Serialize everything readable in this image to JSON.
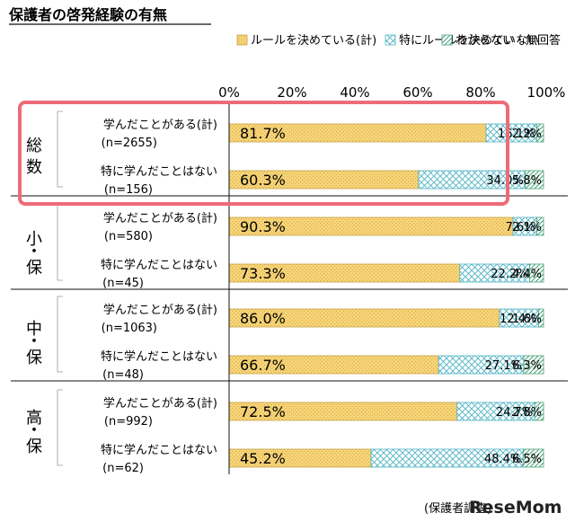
{
  "title": "保護者の啓発経験の有無",
  "legend": [
    {
      "label": "ルールを決めている(計)",
      "pattern": "dots"
    },
    {
      "label": "特にルールを決めていない",
      "pattern": "cross"
    },
    {
      "label": "わからない・無回答",
      "pattern": "diag"
    }
  ],
  "source_text": "(保護者調査)",
  "logo_text": "ReseMom",
  "colors": {
    "series1_fill": "#f6d479",
    "series1_stroke": "#c9a24a",
    "series2_stroke": "#4fb3c4",
    "series3_stroke": "#4aa27a",
    "highlight": "#ee6b78"
  },
  "chart_data": {
    "type": "bar",
    "orientation": "horizontal",
    "stacked": true,
    "xlim": [
      0,
      100
    ],
    "xticks": [
      "0%",
      "20%",
      "40%",
      "60%",
      "80%",
      "100%"
    ],
    "legend_position": "top",
    "groups": [
      {
        "label": "総数",
        "rows": [
          {
            "label_line1": "学んだことがある(計)",
            "label_line2": "(n=2655)",
            "values": [
              81.7,
              16.1,
              2.2
            ],
            "value_labels": [
              "81.7%",
              "16.1%",
              "2.2%"
            ]
          },
          {
            "label_line1": "特に学んだことはない",
            "label_line2": "(n=156)",
            "values": [
              60.3,
              34.0,
              5.8
            ],
            "value_labels": [
              "60.3%",
              "34.0%",
              "5.8%"
            ]
          }
        ]
      },
      {
        "label": "小・保",
        "rows": [
          {
            "label_line1": "学んだことがある(計)",
            "label_line2": "(n=580)",
            "values": [
              90.3,
              7.6,
              2.1
            ],
            "value_labels": [
              "90.3%",
              "7.6%",
              "2.1%"
            ]
          },
          {
            "label_line1": "特に学んだことはない",
            "label_line2": "(n=45)",
            "values": [
              73.3,
              22.2,
              4.4
            ],
            "value_labels": [
              "73.3%",
              "22.2%",
              "4.4%"
            ]
          }
        ]
      },
      {
        "label": "中・保",
        "rows": [
          {
            "label_line1": "学んだことがある(計)",
            "label_line2": "(n=1063)",
            "values": [
              86.0,
              12.4,
              1.6
            ],
            "value_labels": [
              "86.0%",
              "12.4%",
              "1.6%"
            ]
          },
          {
            "label_line1": "特に学んだことはない",
            "label_line2": "(n=48)",
            "values": [
              66.7,
              27.1,
              6.3
            ],
            "value_labels": [
              "66.7%",
              "27.1%",
              "6.3%"
            ]
          }
        ]
      },
      {
        "label": "高・保",
        "rows": [
          {
            "label_line1": "学んだことがある(計)",
            "label_line2": "(n=992)",
            "values": [
              72.5,
              24.7,
              2.8
            ],
            "value_labels": [
              "72.5%",
              "24.7%",
              "2.8%"
            ]
          },
          {
            "label_line1": "特に学んだことはない",
            "label_line2": "(n=62)",
            "values": [
              45.2,
              48.4,
              6.5
            ],
            "value_labels": [
              "45.2%",
              "48.4%",
              "6.5%"
            ]
          }
        ]
      }
    ]
  }
}
